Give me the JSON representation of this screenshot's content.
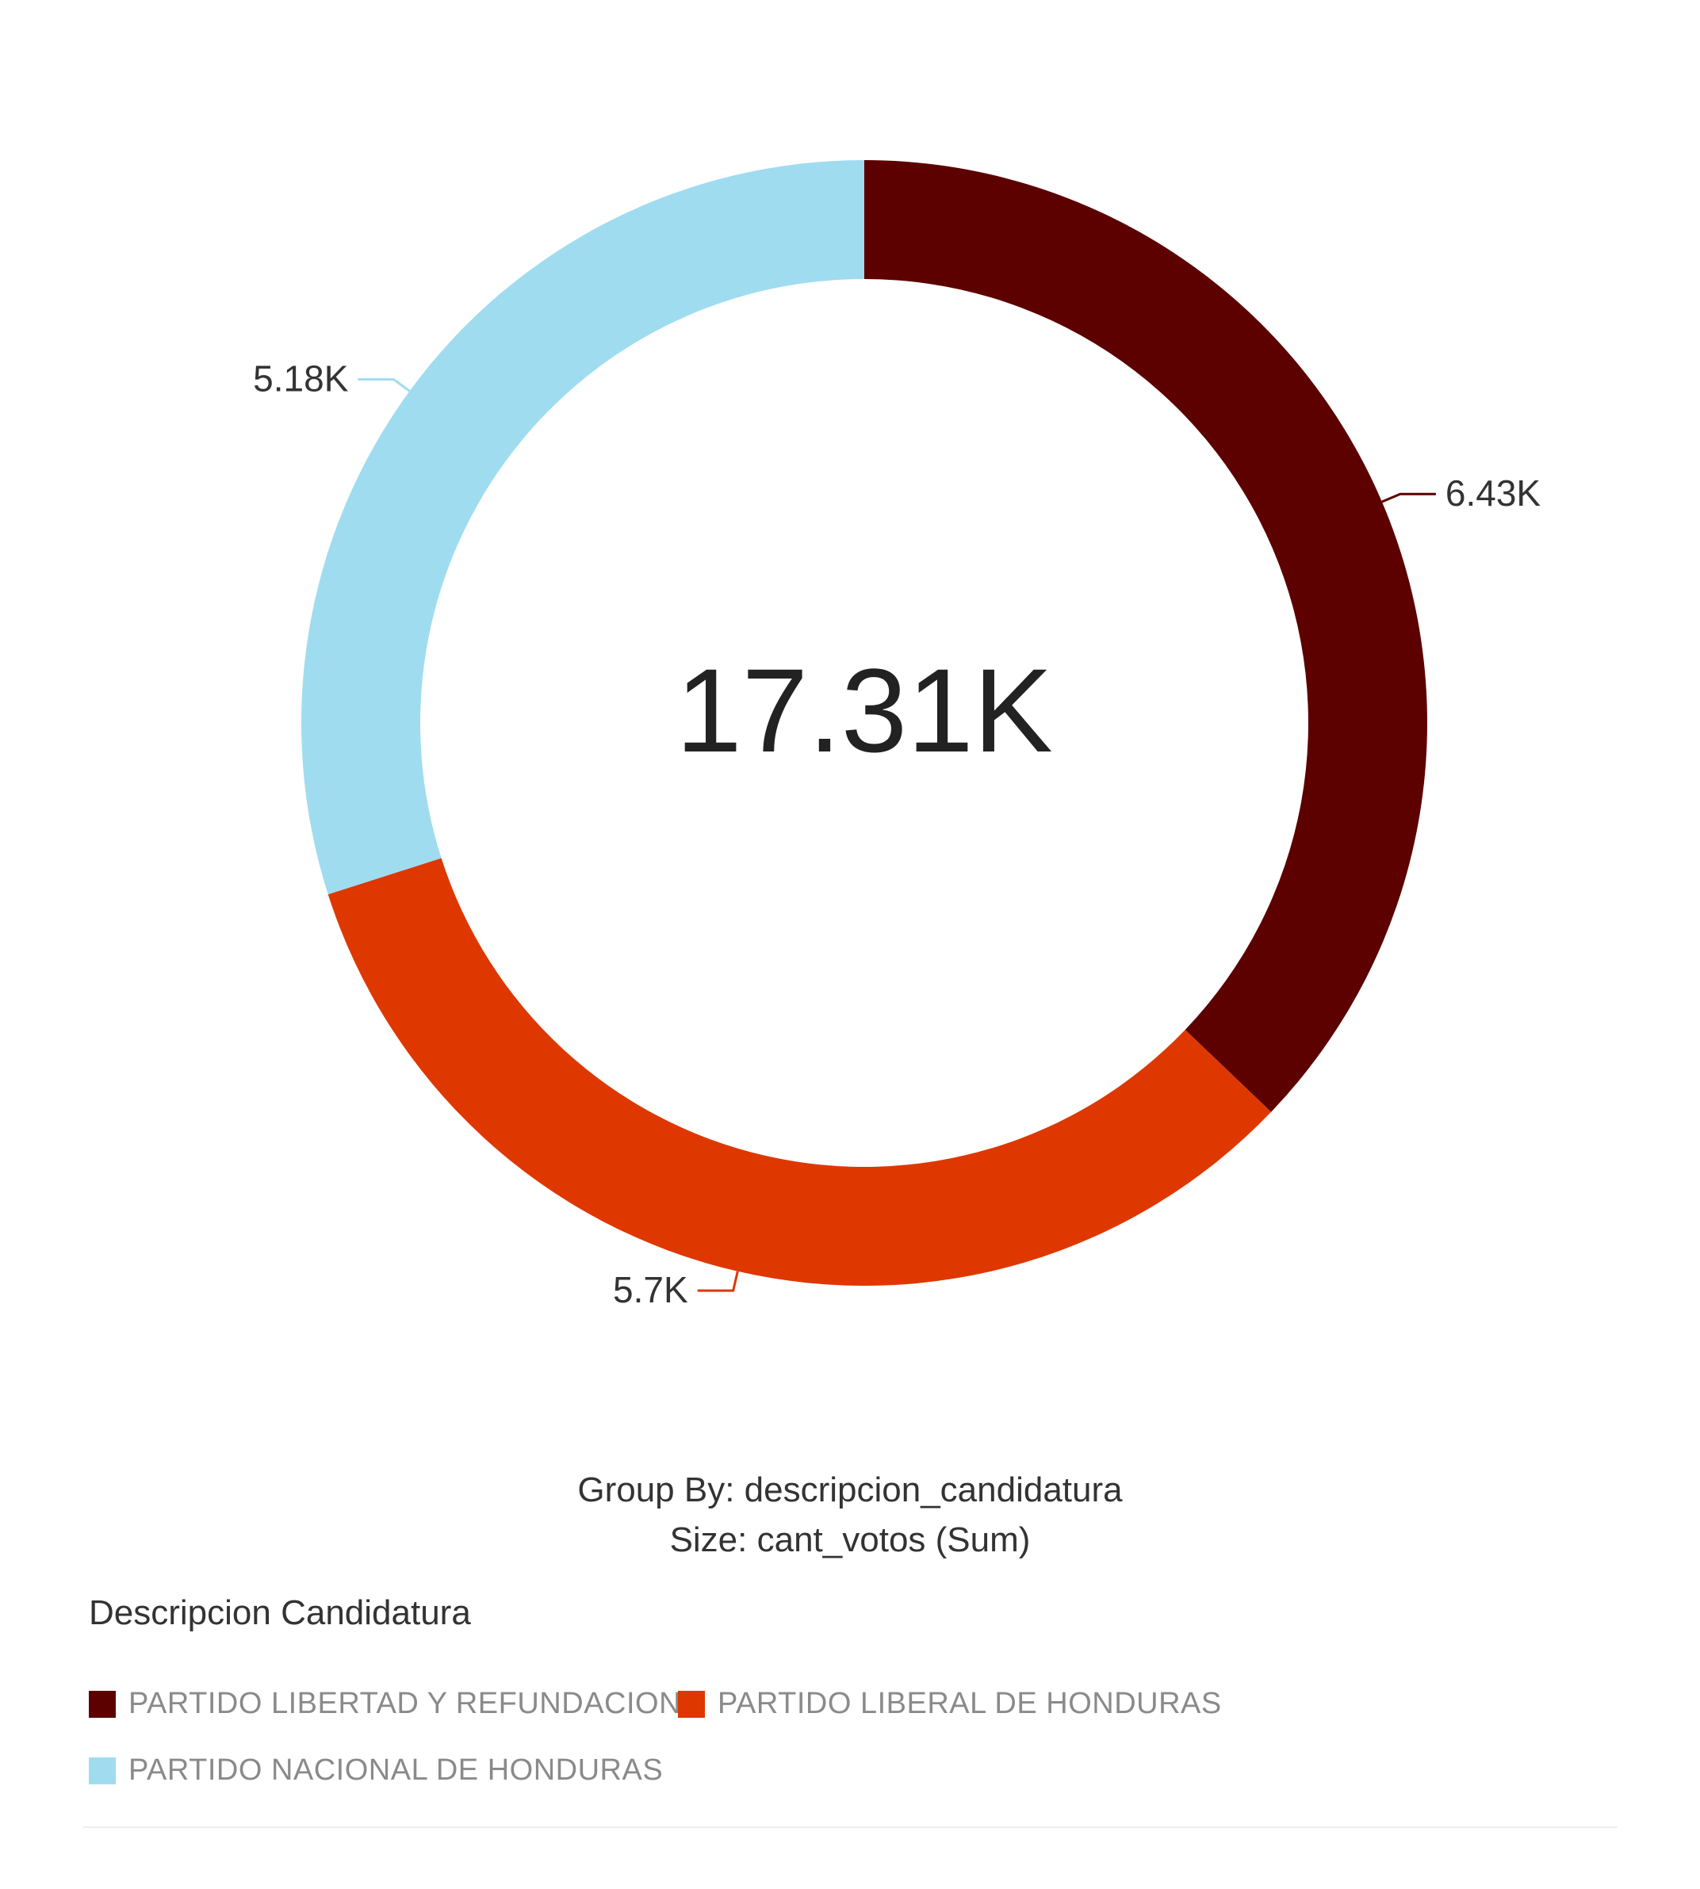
{
  "chart_data": {
    "type": "pie",
    "subtype": "donut",
    "center_label": "17.31K",
    "categories": [
      "PARTIDO LIBERTAD Y REFUNDACION",
      "PARTIDO LIBERAL DE HONDURAS",
      "PARTIDO NACIONAL DE HONDURAS"
    ],
    "values": [
      6430,
      5700,
      5180
    ],
    "value_labels": [
      "6.43K",
      "5.7K",
      "5.18K"
    ],
    "colors": [
      "#5c0000",
      "#de3800",
      "#a0dcf0"
    ],
    "start_angle_deg": 0,
    "direction": "clockwise",
    "legend_position": "bottom-left"
  },
  "caption": {
    "group_by": "Group By: descripcion_candidatura",
    "size": "Size: cant_votos (Sum)"
  },
  "legend": {
    "title": "Descripcion Candidatura",
    "items": [
      {
        "label": "PARTIDO LIBERTAD Y REFUNDACION",
        "color": "#5c0000"
      },
      {
        "label": "PARTIDO LIBERAL DE HONDURAS",
        "color": "#de3800"
      },
      {
        "label": "PARTIDO NACIONAL DE HONDURAS",
        "color": "#a0dcf0"
      }
    ]
  }
}
